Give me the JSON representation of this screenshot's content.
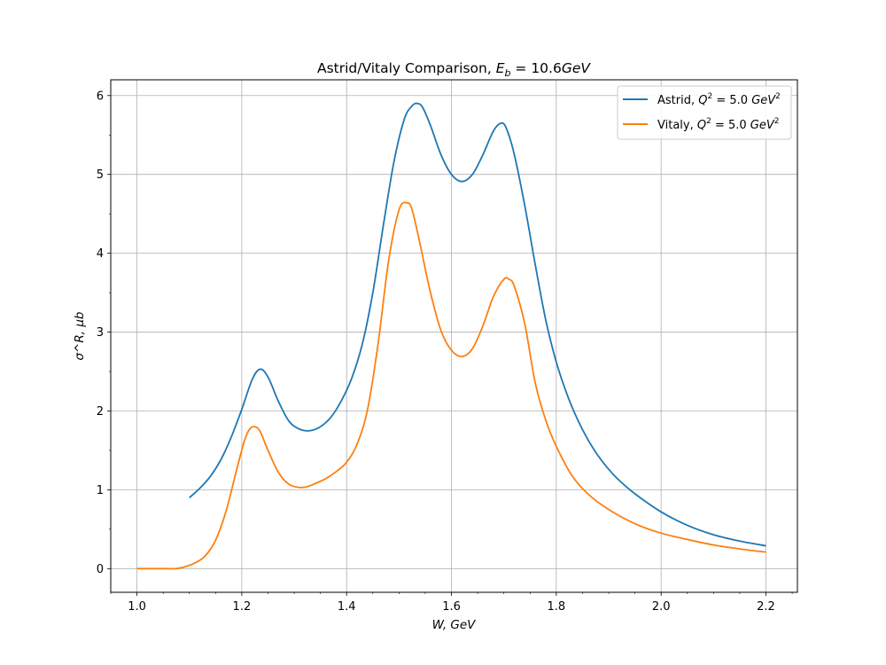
{
  "chart_data": {
    "type": "line",
    "title": "Astrid/Vitaly Comparison, E_b = 10.6GeV",
    "title_parts": {
      "prefix": "Astrid/Vitaly Comparison, ",
      "symbol": "E",
      "subscript": "b",
      "value": " = 10.6",
      "unit": "GeV"
    },
    "xlabel": "W, GeV",
    "ylabel": "σ^R, μb",
    "xlim": [
      0.95,
      2.26
    ],
    "ylim": [
      -0.3,
      6.2
    ],
    "xticks": [
      1.0,
      1.2,
      1.4,
      1.6,
      1.8,
      2.0,
      2.2
    ],
    "xtick_labels": [
      "1.0",
      "1.2",
      "1.4",
      "1.6",
      "1.8",
      "2.0",
      "2.2"
    ],
    "yticks": [
      0,
      1,
      2,
      3,
      4,
      5,
      6
    ],
    "ytick_labels": [
      "0",
      "1",
      "2",
      "3",
      "4",
      "5",
      "6"
    ],
    "grid": true,
    "legend_position": "top-right",
    "series": [
      {
        "name": "Astrid, Q^2 = 5.0 GeV^2",
        "label_prefix": "Astrid, ",
        "color": "#1f77b4",
        "x": [
          1.1,
          1.12,
          1.14,
          1.16,
          1.18,
          1.2,
          1.22,
          1.235,
          1.25,
          1.27,
          1.29,
          1.31,
          1.33,
          1.35,
          1.37,
          1.39,
          1.41,
          1.43,
          1.45,
          1.47,
          1.49,
          1.51,
          1.525,
          1.535,
          1.545,
          1.56,
          1.58,
          1.6,
          1.62,
          1.64,
          1.66,
          1.68,
          1.695,
          1.705,
          1.72,
          1.74,
          1.76,
          1.78,
          1.8,
          1.82,
          1.84,
          1.86,
          1.88,
          1.9,
          1.92,
          1.95,
          2.0,
          2.05,
          2.1,
          2.15,
          2.2
        ],
        "y": [
          0.9,
          1.02,
          1.17,
          1.38,
          1.67,
          2.02,
          2.4,
          2.53,
          2.43,
          2.12,
          1.87,
          1.77,
          1.75,
          1.8,
          1.92,
          2.13,
          2.42,
          2.85,
          3.5,
          4.35,
          5.15,
          5.7,
          5.87,
          5.9,
          5.85,
          5.62,
          5.25,
          5.0,
          4.91,
          5.0,
          5.25,
          5.55,
          5.65,
          5.58,
          5.25,
          4.6,
          3.85,
          3.15,
          2.62,
          2.22,
          1.9,
          1.64,
          1.43,
          1.26,
          1.12,
          0.95,
          0.72,
          0.55,
          0.43,
          0.35,
          0.29
        ]
      },
      {
        "name": "Vitaly, Q^2 = 5.0 GeV^2",
        "label_prefix": "Vitaly, ",
        "color": "#ff7f0e",
        "x": [
          1.0,
          1.02,
          1.04,
          1.06,
          1.075,
          1.09,
          1.11,
          1.13,
          1.15,
          1.17,
          1.19,
          1.205,
          1.215,
          1.225,
          1.235,
          1.25,
          1.27,
          1.29,
          1.31,
          1.325,
          1.34,
          1.36,
          1.38,
          1.4,
          1.42,
          1.44,
          1.46,
          1.48,
          1.5,
          1.515,
          1.525,
          1.54,
          1.56,
          1.58,
          1.6,
          1.62,
          1.64,
          1.66,
          1.68,
          1.7,
          1.71,
          1.72,
          1.74,
          1.76,
          1.78,
          1.8,
          1.83,
          1.86,
          1.9,
          1.95,
          2.0,
          2.05,
          2.1,
          2.15,
          2.2
        ],
        "y": [
          0.0,
          0.0,
          0.0,
          0.0,
          0.0,
          0.02,
          0.07,
          0.16,
          0.36,
          0.73,
          1.25,
          1.62,
          1.77,
          1.8,
          1.74,
          1.5,
          1.22,
          1.07,
          1.03,
          1.04,
          1.08,
          1.14,
          1.23,
          1.35,
          1.58,
          2.02,
          2.85,
          3.9,
          4.55,
          4.64,
          4.55,
          4.12,
          3.5,
          3.02,
          2.77,
          2.69,
          2.79,
          3.08,
          3.45,
          3.67,
          3.67,
          3.58,
          3.1,
          2.35,
          1.88,
          1.55,
          1.18,
          0.95,
          0.75,
          0.57,
          0.45,
          0.37,
          0.3,
          0.25,
          0.21
        ]
      }
    ]
  }
}
